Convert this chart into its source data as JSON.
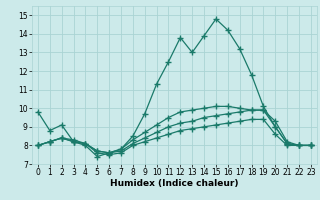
{
  "x": [
    0,
    1,
    2,
    3,
    4,
    5,
    6,
    7,
    8,
    9,
    10,
    11,
    12,
    13,
    14,
    15,
    16,
    17,
    18,
    19,
    20,
    21,
    22,
    23
  ],
  "line1": [
    9.8,
    8.8,
    9.1,
    8.2,
    8.0,
    7.4,
    7.6,
    7.8,
    8.5,
    9.7,
    11.3,
    12.5,
    13.8,
    13.0,
    13.9,
    14.8,
    14.2,
    13.2,
    11.8,
    10.1,
    9.0,
    8.1,
    8.0,
    8.0
  ],
  "line2": [
    8.0,
    8.2,
    8.4,
    8.2,
    8.1,
    7.6,
    7.5,
    7.6,
    8.0,
    8.2,
    8.4,
    8.6,
    8.8,
    8.9,
    9.0,
    9.1,
    9.2,
    9.3,
    9.4,
    9.4,
    8.6,
    8.0,
    8.0,
    8.0
  ],
  "line3": [
    8.0,
    8.2,
    8.4,
    8.2,
    8.1,
    7.7,
    7.6,
    7.7,
    8.1,
    8.4,
    8.7,
    9.0,
    9.2,
    9.3,
    9.5,
    9.6,
    9.7,
    9.8,
    9.9,
    9.9,
    9.0,
    8.1,
    8.0,
    8.0
  ],
  "line4": [
    8.0,
    8.2,
    8.4,
    8.3,
    8.1,
    7.7,
    7.6,
    7.8,
    8.3,
    8.7,
    9.1,
    9.5,
    9.8,
    9.9,
    10.0,
    10.1,
    10.1,
    10.0,
    9.9,
    9.9,
    9.3,
    8.2,
    8.0,
    8.0
  ],
  "line_color": "#1a7a6a",
  "bg_color": "#cceaea",
  "grid_color": "#aad4d4",
  "xlabel": "Humidex (Indice chaleur)",
  "ylim": [
    7,
    15.5
  ],
  "xlim": [
    -0.5,
    23.5
  ],
  "yticks": [
    7,
    8,
    9,
    10,
    11,
    12,
    13,
    14,
    15
  ],
  "xticks": [
    0,
    1,
    2,
    3,
    4,
    5,
    6,
    7,
    8,
    9,
    10,
    11,
    12,
    13,
    14,
    15,
    16,
    17,
    18,
    19,
    20,
    21,
    22,
    23
  ]
}
